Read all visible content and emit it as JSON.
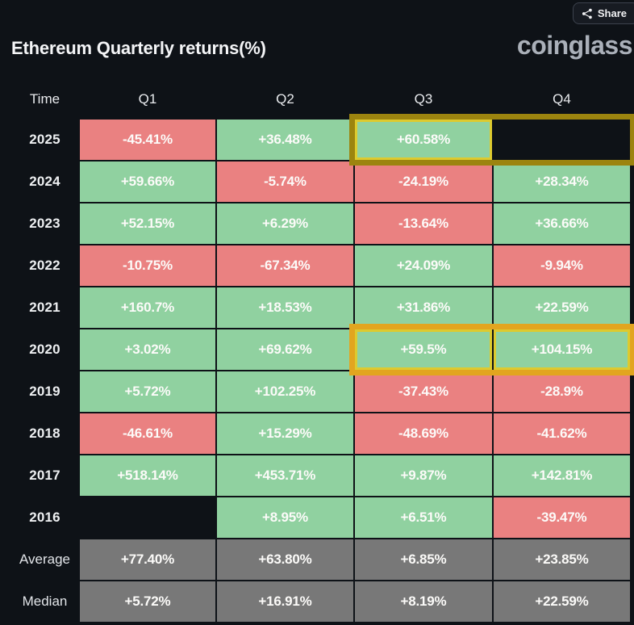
{
  "header": {
    "title": "Ethereum Quarterly returns(%)",
    "brand": "coinglass",
    "share_label": "Share"
  },
  "colors": {
    "background": "#0e1217",
    "positive": "#90d1a0",
    "negative": "#ea8181",
    "summary": "#787878",
    "highlight_2025_frame": "#9c840f",
    "highlight_2020_frame": "#e2a51f",
    "highlight_cell_border": "#ddca2f"
  },
  "chart_data": {
    "type": "table",
    "title": "Ethereum Quarterly returns(%)",
    "columns": [
      "Time",
      "Q1",
      "Q2",
      "Q3",
      "Q4"
    ],
    "rows": [
      {
        "label": "2025",
        "kind": "year",
        "values": [
          "-45.41%",
          "+36.48%",
          "+60.58%",
          ""
        ]
      },
      {
        "label": "2024",
        "kind": "year",
        "values": [
          "+59.66%",
          "-5.74%",
          "-24.19%",
          "+28.34%"
        ]
      },
      {
        "label": "2023",
        "kind": "year",
        "values": [
          "+52.15%",
          "+6.29%",
          "-13.64%",
          "+36.66%"
        ]
      },
      {
        "label": "2022",
        "kind": "year",
        "values": [
          "-10.75%",
          "-67.34%",
          "+24.09%",
          "-9.94%"
        ]
      },
      {
        "label": "2021",
        "kind": "year",
        "values": [
          "+160.7%",
          "+18.53%",
          "+31.86%",
          "+22.59%"
        ]
      },
      {
        "label": "2020",
        "kind": "year",
        "values": [
          "+3.02%",
          "+69.62%",
          "+59.5%",
          "+104.15%"
        ]
      },
      {
        "label": "2019",
        "kind": "year",
        "values": [
          "+5.72%",
          "+102.25%",
          "-37.43%",
          "-28.9%"
        ]
      },
      {
        "label": "2018",
        "kind": "year",
        "values": [
          "-46.61%",
          "+15.29%",
          "-48.69%",
          "-41.62%"
        ]
      },
      {
        "label": "2017",
        "kind": "year",
        "values": [
          "+518.14%",
          "+453.71%",
          "+9.87%",
          "+142.81%"
        ]
      },
      {
        "label": "2016",
        "kind": "year",
        "values": [
          "",
          "+8.95%",
          "+6.51%",
          "-39.47%"
        ]
      },
      {
        "label": "Average",
        "kind": "summary",
        "values": [
          "+77.40%",
          "+63.80%",
          "+6.85%",
          "+23.85%"
        ]
      },
      {
        "label": "Median",
        "kind": "summary",
        "values": [
          "+5.72%",
          "+16.91%",
          "+8.19%",
          "+22.59%"
        ]
      }
    ],
    "highlights": [
      {
        "target": "2025 Q3-Q4",
        "style": "mustard-frame"
      },
      {
        "target": "2020 Q3-Q4",
        "style": "gold-frame"
      }
    ],
    "cell_color_rule": "positive=green, negative=red, summary-row=gray, missing=blank"
  }
}
